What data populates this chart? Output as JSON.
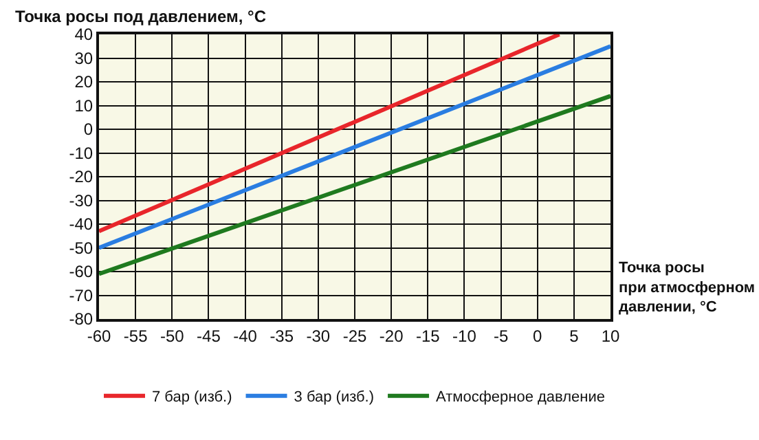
{
  "chart_data": {
    "type": "line",
    "ylabel": "Точка росы под давлением, °C",
    "xlabel": "Точка росы при атмосферном давлении, °C",
    "xlim": [
      -60,
      10
    ],
    "xticks": [
      -60,
      -55,
      -50,
      -45,
      -40,
      -35,
      -30,
      -25,
      -20,
      -15,
      -10,
      -5,
      0,
      5,
      10
    ],
    "ylim": [
      -80,
      40
    ],
    "yticks": [
      -80,
      -70,
      -60,
      -50,
      -40,
      -30,
      -20,
      -10,
      0,
      10,
      20,
      30,
      40
    ],
    "grid": true,
    "legend": "bottom",
    "marker": "none",
    "line_style": "solid",
    "series": [
      {
        "name": "7 бар (изб.)",
        "color": "#e8262b",
        "x": [
          -60,
          3
        ],
        "values": [
          -43,
          40
        ]
      },
      {
        "name": "3 бар (изб.)",
        "color": "#2a7de1",
        "x": [
          -60,
          10
        ],
        "values": [
          -50,
          35
        ]
      },
      {
        "name": "Атмосферное давление",
        "color": "#1f7a1f",
        "x": [
          -60,
          10
        ],
        "values": [
          -61,
          14
        ]
      }
    ]
  }
}
